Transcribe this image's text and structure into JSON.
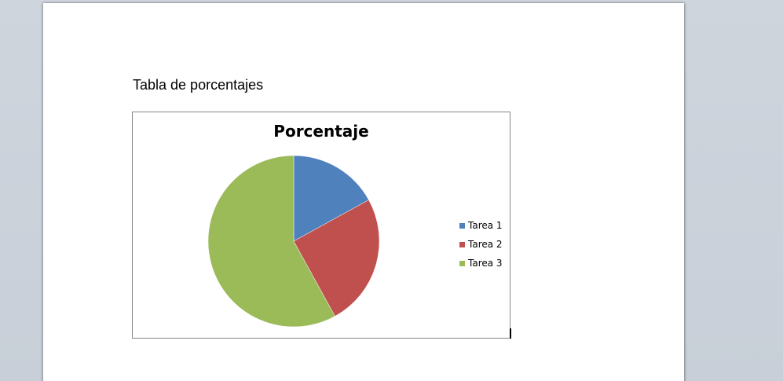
{
  "document": {
    "heading": "Tabla de porcentajes"
  },
  "chart_data": {
    "type": "pie",
    "title": "Porcentaje",
    "categories": [
      "Tarea 1",
      "Tarea 2",
      "Tarea 3"
    ],
    "values": [
      17,
      25,
      58
    ],
    "colors": [
      "#4f81bd",
      "#c0504d",
      "#9bbb59"
    ],
    "legend_position": "right"
  }
}
